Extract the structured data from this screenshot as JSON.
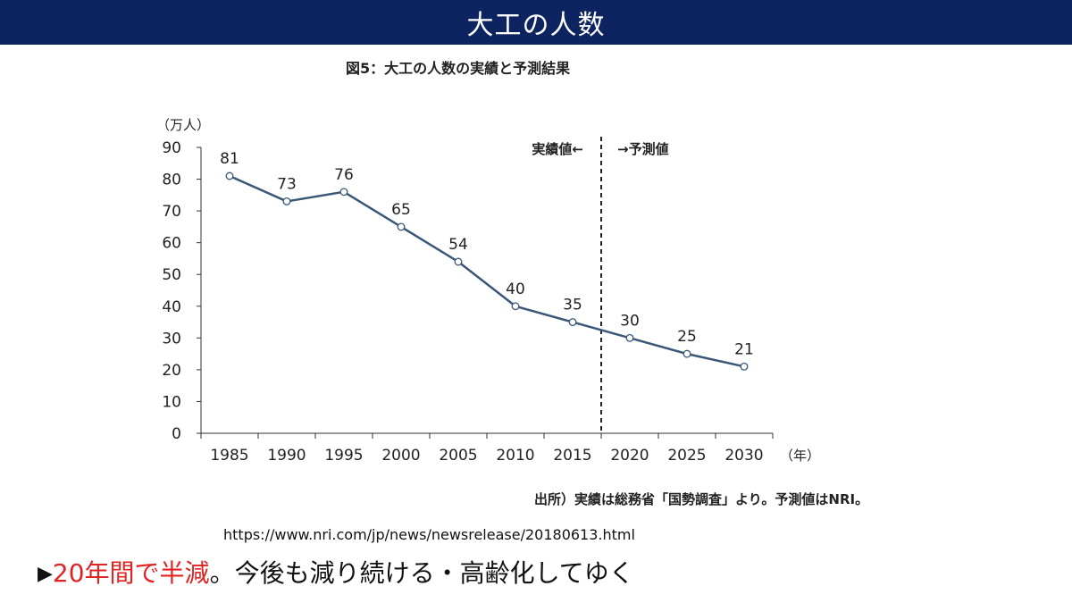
{
  "header": {
    "title": "大工の人数"
  },
  "figure": {
    "title": "図5：大工の人数の実績と予測結果",
    "source_note": "出所）実績は総務省「国勢調査」より。予測値はNRI。"
  },
  "reference": {
    "url": "https://www.nri.com/jp/news/newsrelease/20180613.html"
  },
  "summary": {
    "marker": "▶",
    "highlight": "20年間で半減",
    "rest": "。今後も減り続ける・高齢化してゆく"
  },
  "colors": {
    "header_bg": "#0e2461",
    "line": "#3b5777",
    "highlight": "#e02424"
  },
  "chart_data": {
    "type": "line",
    "title": "図5：大工の人数の実績と予測結果",
    "ylabel": "（万人）",
    "xlabel": "（年）",
    "ylim": [
      0,
      90
    ],
    "yticks": [
      0,
      10,
      20,
      30,
      40,
      50,
      60,
      70,
      80,
      90
    ],
    "categories": [
      "1985",
      "1990",
      "1995",
      "2000",
      "2005",
      "2010",
      "2015",
      "2020",
      "2025",
      "2030"
    ],
    "series": [
      {
        "name": "大工の人数",
        "values": [
          81,
          73,
          76,
          65,
          54,
          40,
          35,
          30,
          25,
          21
        ]
      }
    ],
    "divider": {
      "after_category": "2015",
      "left_label": "実績値←",
      "right_label": "→予測値"
    },
    "grid": false
  }
}
